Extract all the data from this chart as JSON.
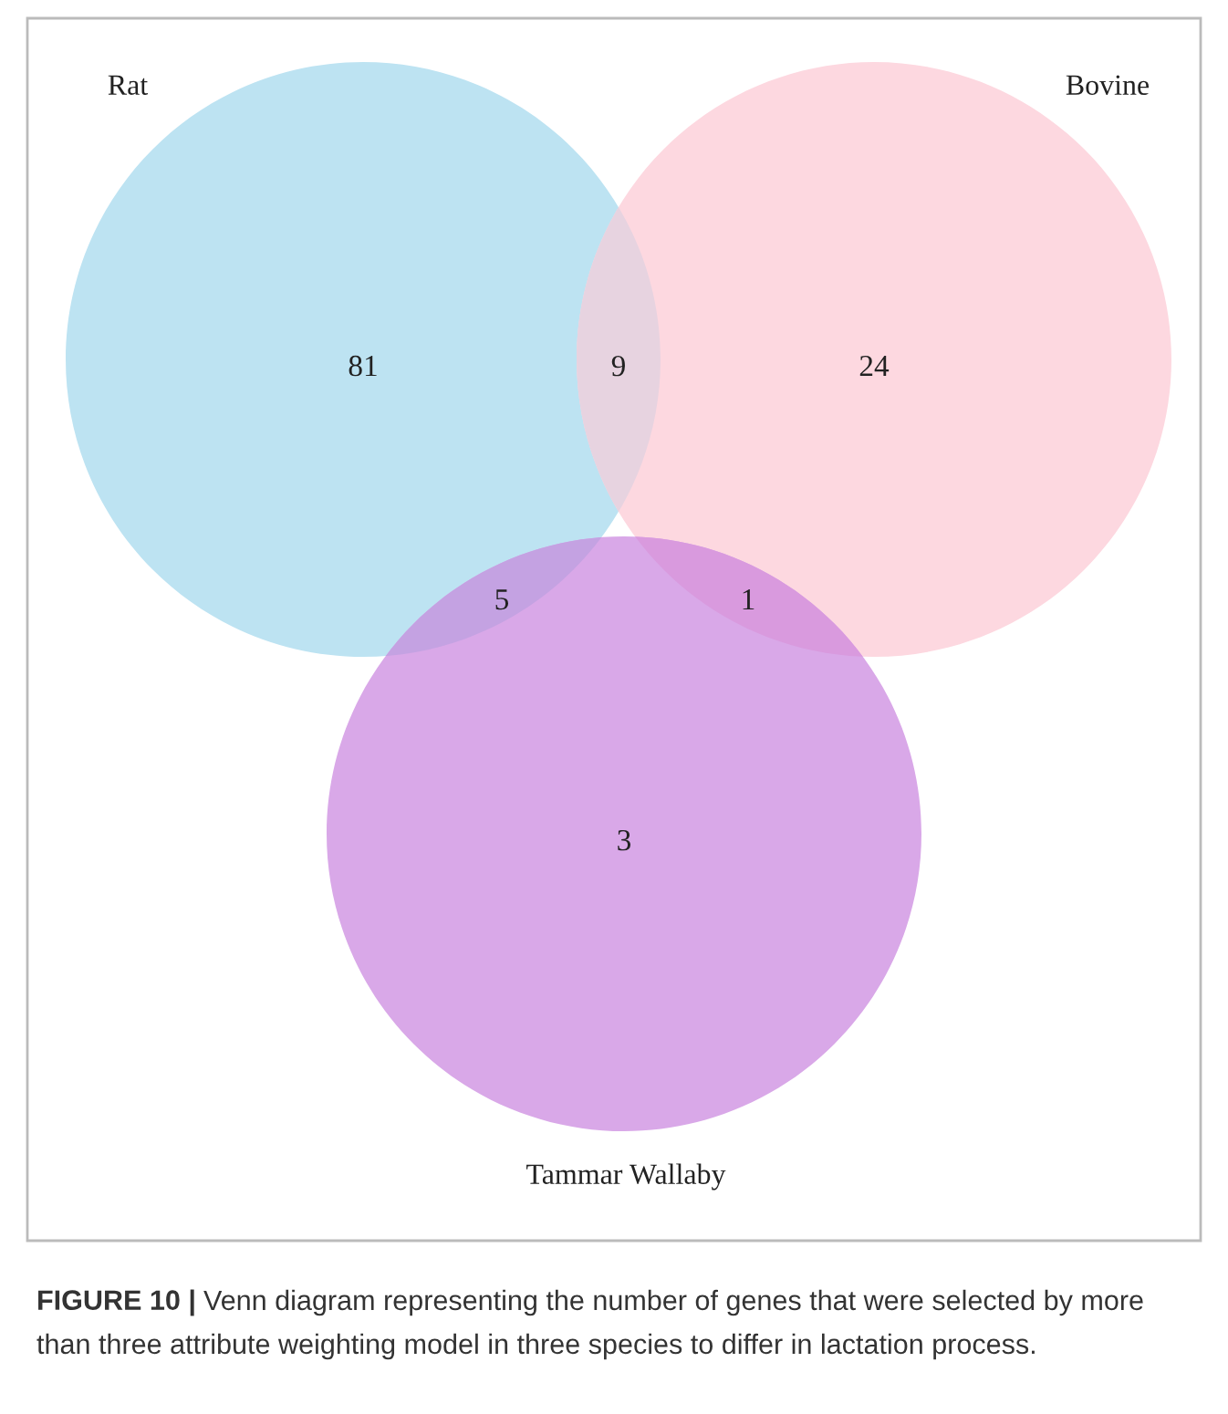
{
  "chart_data": {
    "type": "other",
    "categories": [
      null,
      null,
      null,
      null,
      null,
      null
    ],
    "values": [
      81,
      9,
      24,
      5,
      1,
      3
    ],
    "colors": [
      "#bde3f2",
      "#e7d3e0",
      "#fdd8e0",
      "#c4a2e2",
      "#d99ade",
      "#d9a8e8"
    ],
    "data_labels": true,
    "annotations": [
      "Rat",
      "Bovine",
      "Tammar Wallaby",
      "FIGURE 10 |",
      "Venn diagram representing the number of genes that were selected by more than three attribute weighting model in three species to differ in lactation process."
    ]
  }
}
